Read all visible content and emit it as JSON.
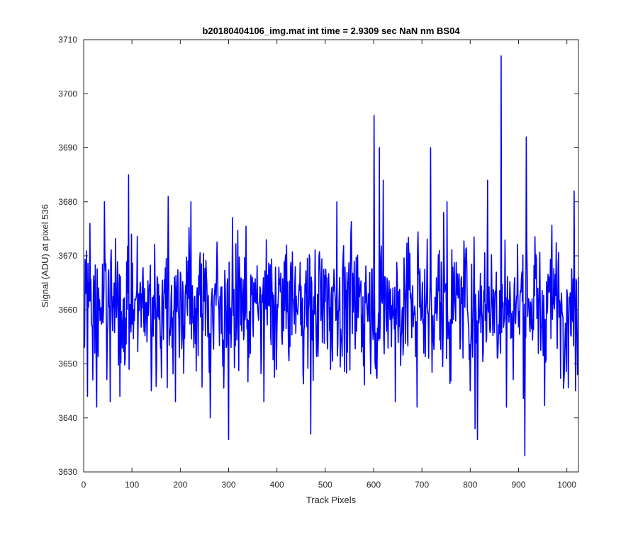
{
  "chart_data": {
    "type": "line",
    "title": "b20180404106_img.mat int time = 2.9309 sec  NaN nm BS04",
    "xlabel": "Track Pixels",
    "ylabel": "Signal (ADU) at pixel 536",
    "xlim": [
      0,
      1024
    ],
    "ylim": [
      3630,
      3710
    ],
    "xticks": [
      0,
      100,
      200,
      300,
      400,
      500,
      600,
      700,
      800,
      900,
      1000
    ],
    "yticks": [
      3630,
      3640,
      3650,
      3660,
      3670,
      3680,
      3690,
      3700,
      3710
    ],
    "xtick_labels": [
      "0",
      "100",
      "200",
      "300",
      "400",
      "500",
      "600",
      "700",
      "800",
      "900",
      "1000"
    ],
    "ytick_labels": [
      "3630",
      "3640",
      "3650",
      "3660",
      "3670",
      "3680",
      "3690",
      "3700",
      "3710"
    ],
    "grid": false,
    "line_color": "#0000FF",
    "series": [
      {
        "x_start": 1,
        "x_step": 1,
        "count": 1024,
        "noise_center": 3661,
        "noise_std": 6,
        "notable_points": [
          {
            "x": 8,
            "y": 3644
          },
          {
            "x": 13,
            "y": 3676
          },
          {
            "x": 27,
            "y": 3642
          },
          {
            "x": 43,
            "y": 3680
          },
          {
            "x": 55,
            "y": 3643
          },
          {
            "x": 75,
            "y": 3644
          },
          {
            "x": 93,
            "y": 3685
          },
          {
            "x": 140,
            "y": 3645
          },
          {
            "x": 175,
            "y": 3681
          },
          {
            "x": 190,
            "y": 3643
          },
          {
            "x": 222,
            "y": 3680
          },
          {
            "x": 262,
            "y": 3640
          },
          {
            "x": 300,
            "y": 3636
          },
          {
            "x": 373,
            "y": 3643
          },
          {
            "x": 470,
            "y": 3637
          },
          {
            "x": 524,
            "y": 3680
          },
          {
            "x": 601,
            "y": 3696
          },
          {
            "x": 612,
            "y": 3690
          },
          {
            "x": 620,
            "y": 3684
          },
          {
            "x": 645,
            "y": 3643
          },
          {
            "x": 690,
            "y": 3642
          },
          {
            "x": 718,
            "y": 3690
          },
          {
            "x": 752,
            "y": 3680
          },
          {
            "x": 810,
            "y": 3638
          },
          {
            "x": 815,
            "y": 3636
          },
          {
            "x": 836,
            "y": 3684
          },
          {
            "x": 864,
            "y": 3707
          },
          {
            "x": 875,
            "y": 3642
          },
          {
            "x": 913,
            "y": 3633
          },
          {
            "x": 916,
            "y": 3692
          },
          {
            "x": 1015,
            "y": 3682
          },
          {
            "x": 1018,
            "y": 3645
          }
        ]
      }
    ]
  }
}
